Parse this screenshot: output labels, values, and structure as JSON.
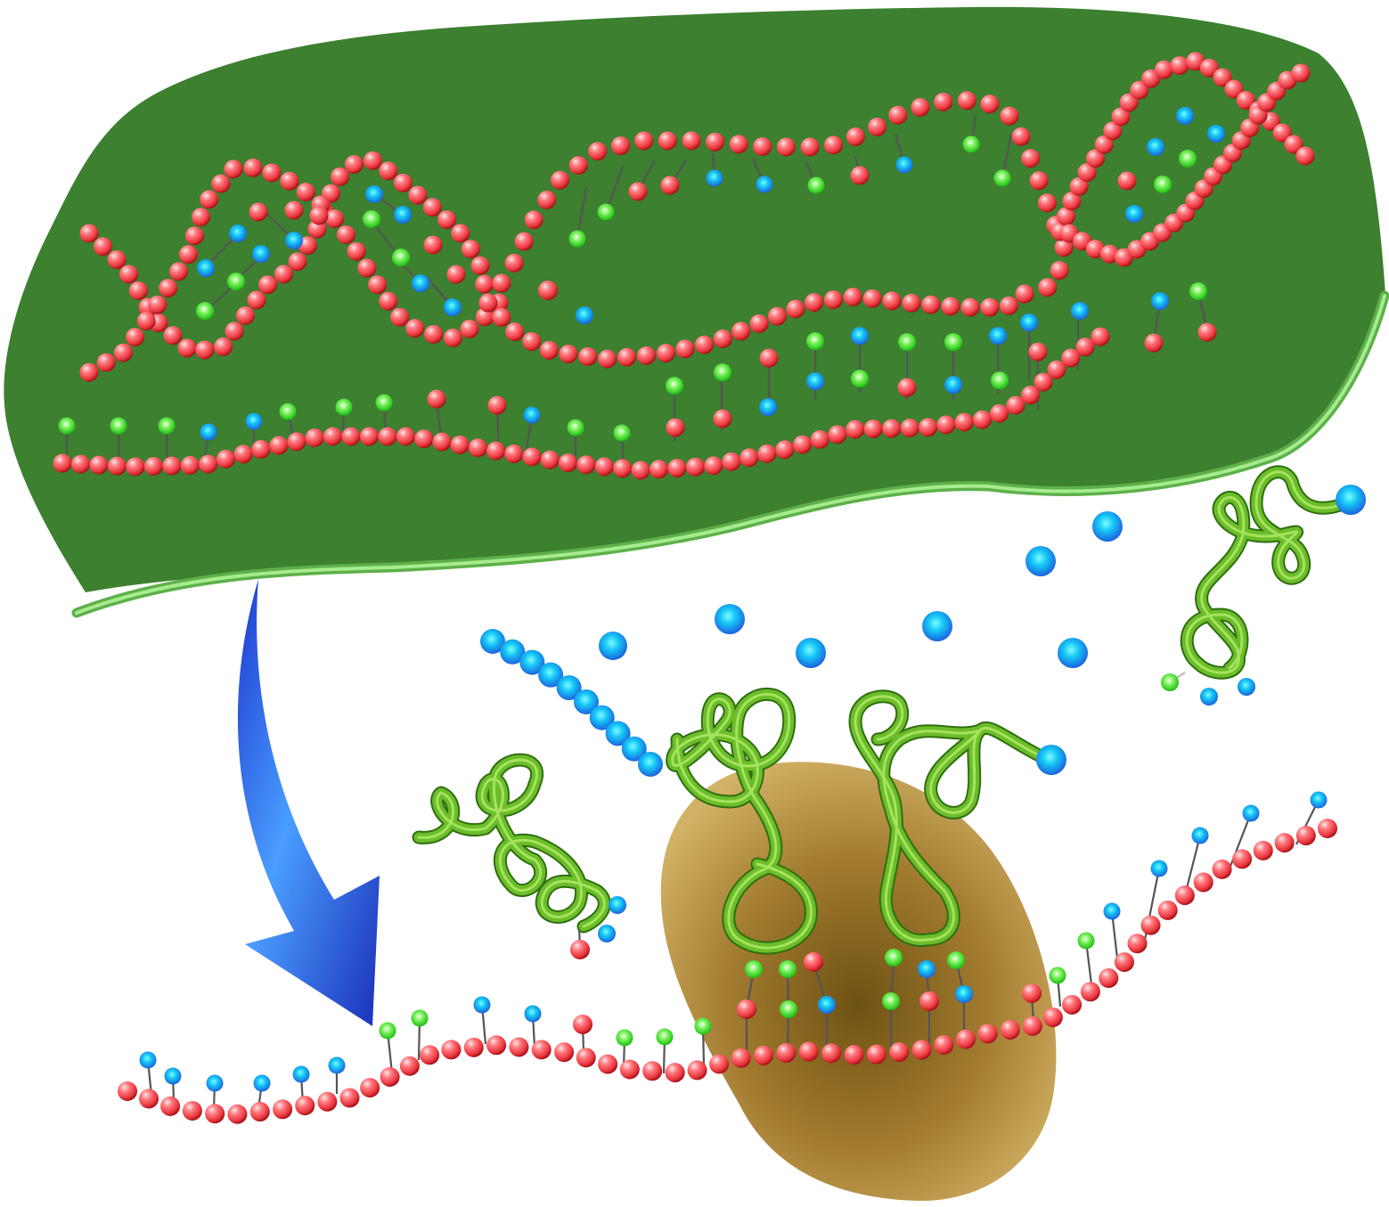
{
  "diagram": {
    "description_visible_text": "",
    "colors": {
      "nucleus_fill": "#3c8030",
      "nucleus_rim": "#86dc72",
      "backbone_bead": "#f0555c",
      "base_blue": "#1ea0ee",
      "base_green": "#3fd82a",
      "trna_tube": "#5caa28",
      "ribosome": "#a9823c",
      "arrow": "#2f6ff0",
      "background": "#ffffff"
    },
    "parts": [
      {
        "id": "nucleus",
        "kind": "cell-nucleus"
      },
      {
        "id": "dna-double-helix",
        "kind": "dna"
      },
      {
        "id": "mrna-transcript",
        "kind": "mrna"
      },
      {
        "id": "export-arrow",
        "kind": "arrow"
      },
      {
        "id": "mrna-strand",
        "kind": "mrna"
      },
      {
        "id": "ribosome",
        "kind": "ribosome"
      },
      {
        "id": "trna-molecules",
        "kind": "trna",
        "count": 4
      },
      {
        "id": "amino-acid-chain",
        "kind": "polypeptide"
      },
      {
        "id": "free-amino-acids",
        "kind": "amino-acid"
      }
    ]
  }
}
